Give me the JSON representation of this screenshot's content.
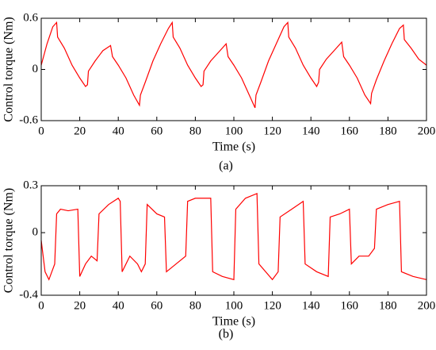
{
  "chart_data": [
    {
      "type": "line",
      "xlabel": "Time (s)",
      "ylabel": "Control torque (Nm)",
      "caption": "(a)",
      "x": [
        0,
        3,
        6,
        8,
        8.5,
        12,
        16,
        20,
        23,
        24,
        24.5,
        28,
        32,
        36,
        37,
        40,
        44,
        48,
        51,
        51.5,
        54,
        58,
        62,
        66,
        68,
        68.5,
        72,
        76,
        80,
        83,
        84,
        84.5,
        88,
        92,
        96,
        97,
        100,
        104,
        108,
        111,
        111.5,
        114,
        118,
        122,
        126,
        128,
        128.5,
        132,
        136,
        140,
        143,
        144,
        144.5,
        148,
        152,
        156,
        157,
        160,
        164,
        168,
        171,
        171.5,
        174,
        178,
        182,
        186,
        188,
        188.5,
        192,
        196,
        200
      ],
      "series": [
        {
          "name": "Control torque",
          "color": "#ff0000",
          "values": [
            0.05,
            0.3,
            0.5,
            0.55,
            0.38,
            0.25,
            0.05,
            -0.1,
            -0.2,
            -0.18,
            -0.02,
            0.1,
            0.22,
            0.28,
            0.15,
            0.05,
            -0.1,
            -0.3,
            -0.42,
            -0.3,
            -0.15,
            0.1,
            0.3,
            0.48,
            0.55,
            0.38,
            0.25,
            0.05,
            -0.1,
            -0.2,
            -0.18,
            -0.02,
            0.1,
            0.2,
            0.3,
            0.15,
            0.05,
            -0.1,
            -0.3,
            -0.45,
            -0.3,
            -0.15,
            0.1,
            0.3,
            0.5,
            0.55,
            0.38,
            0.25,
            0.05,
            -0.1,
            -0.2,
            -0.15,
            0,
            0.12,
            0.22,
            0.32,
            0.15,
            0.05,
            -0.1,
            -0.3,
            -0.4,
            -0.28,
            -0.12,
            0.1,
            0.3,
            0.48,
            0.52,
            0.35,
            0.25,
            0.12,
            0.05
          ]
        }
      ],
      "xlim": [
        0,
        200
      ],
      "xticks": [
        0,
        20,
        40,
        60,
        80,
        100,
        120,
        140,
        160,
        180,
        200
      ],
      "ylim": [
        -0.6,
        0.6
      ],
      "yticks": [
        -0.6,
        0,
        0.6
      ]
    },
    {
      "type": "line",
      "xlabel": "Time (s)",
      "ylabel": "Control torque (Nm)",
      "caption": "(b)",
      "x": [
        0,
        2,
        4,
        7,
        8,
        10,
        14,
        19,
        20,
        23,
        26,
        29,
        30,
        35,
        40,
        41,
        42,
        46,
        50,
        52,
        54,
        55,
        60,
        64,
        65,
        70,
        75,
        76,
        80,
        88,
        89,
        94,
        100,
        101,
        106,
        112,
        113,
        120,
        123,
        124,
        130,
        136,
        137,
        143,
        149,
        150,
        155,
        160,
        161,
        165,
        170,
        173,
        174,
        180,
        186,
        187,
        193,
        200
      ],
      "series": [
        {
          "name": "Control torque",
          "color": "#ff0000",
          "values": [
            -0.05,
            -0.25,
            -0.3,
            -0.2,
            0.12,
            0.15,
            0.14,
            0.15,
            -0.28,
            -0.2,
            -0.15,
            -0.18,
            0.12,
            0.18,
            0.22,
            0.2,
            -0.25,
            -0.15,
            -0.2,
            -0.25,
            -0.2,
            0.18,
            0.12,
            0.1,
            -0.25,
            -0.2,
            -0.15,
            0.2,
            0.22,
            0.22,
            -0.25,
            -0.28,
            -0.3,
            0.15,
            0.22,
            0.25,
            -0.2,
            -0.3,
            -0.25,
            0.1,
            0.15,
            0.2,
            -0.2,
            -0.25,
            -0.28,
            0.1,
            0.12,
            0.15,
            -0.2,
            -0.15,
            -0.15,
            -0.1,
            0.15,
            0.18,
            0.2,
            -0.25,
            -0.28,
            -0.3
          ]
        }
      ],
      "xlim": [
        0,
        200
      ],
      "xticks": [
        0,
        20,
        40,
        60,
        80,
        100,
        120,
        140,
        160,
        180,
        200
      ],
      "ylim": [
        -0.4,
        0.3
      ],
      "yticks": [
        -0.4,
        0,
        0.3
      ]
    }
  ]
}
